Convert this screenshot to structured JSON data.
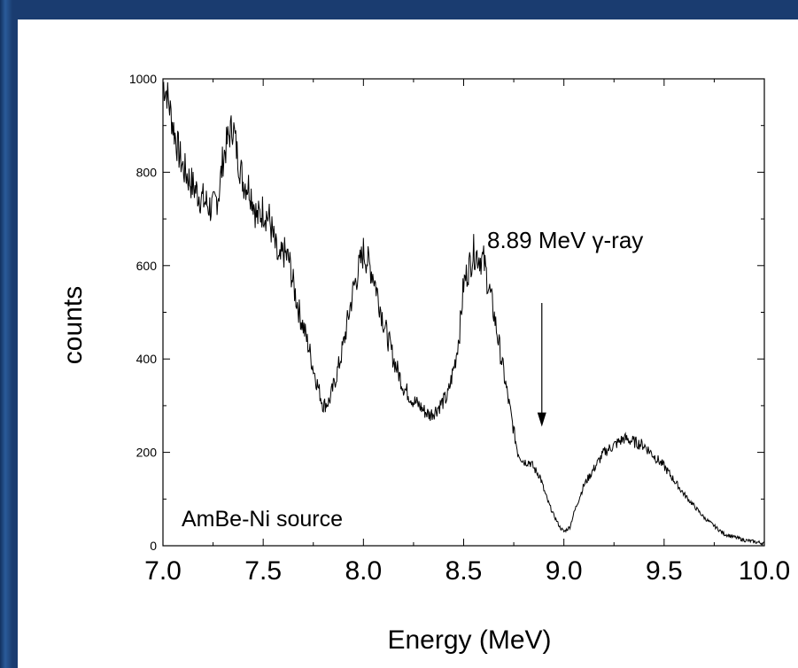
{
  "chart_data": {
    "type": "line",
    "xlabel": "Energy (MeV)",
    "ylabel": "counts",
    "xlim": [
      7.0,
      10.0
    ],
    "ylim": [
      0,
      1000
    ],
    "x_ticks": [
      "7.0",
      "7.5",
      "8.0",
      "8.5",
      "9.0",
      "9.5",
      "10.0"
    ],
    "y_ticks": [
      "0",
      "200",
      "400",
      "600",
      "800",
      "1000"
    ],
    "grid": false,
    "annotations": [
      {
        "text": "8.89 MeV γ-ray",
        "arrow_to": {
          "x": 8.89,
          "y": 255
        }
      }
    ],
    "source_label": "AmBe-Ni source",
    "series": [
      {
        "x": [
          7.0,
          7.02,
          7.05,
          7.08,
          7.1,
          7.15,
          7.2,
          7.25,
          7.28,
          7.3,
          7.33,
          7.35,
          7.37,
          7.4,
          7.43,
          7.45,
          7.47,
          7.5,
          7.53,
          7.55,
          7.58,
          7.6,
          7.63,
          7.65,
          7.68,
          7.7,
          7.73,
          7.75,
          7.78,
          7.8,
          7.83,
          7.85,
          7.88,
          7.9,
          7.95,
          8.0,
          8.05,
          8.1,
          8.15,
          8.2,
          8.25,
          8.28,
          8.3,
          8.33,
          8.36,
          8.38,
          8.4,
          8.42,
          8.44,
          8.46,
          8.48,
          8.5,
          8.55,
          8.6,
          8.65,
          8.7,
          8.74,
          8.77,
          8.8,
          8.83,
          8.86,
          8.88,
          8.9,
          8.92,
          8.95,
          8.98,
          9.0,
          9.03,
          9.05,
          9.1,
          9.2,
          9.3,
          9.4,
          9.5,
          9.6,
          9.7,
          9.8,
          9.9,
          10.0
        ],
        "y": [
          990,
          970,
          900,
          840,
          810,
          770,
          740,
          720,
          760,
          830,
          880,
          900,
          840,
          780,
          770,
          740,
          700,
          720,
          700,
          660,
          600,
          630,
          610,
          560,
          500,
          470,
          420,
          380,
          330,
          300,
          310,
          340,
          390,
          430,
          550,
          630,
          580,
          480,
          400,
          340,
          310,
          300,
          290,
          280,
          290,
          300,
          310,
          320,
          360,
          400,
          460,
          560,
          630,
          610,
          500,
          370,
          270,
          200,
          180,
          180,
          160,
          150,
          120,
          95,
          65,
          40,
          30,
          40,
          70,
          130,
          200,
          230,
          215,
          170,
          110,
          60,
          25,
          12,
          5
        ]
      }
    ]
  }
}
